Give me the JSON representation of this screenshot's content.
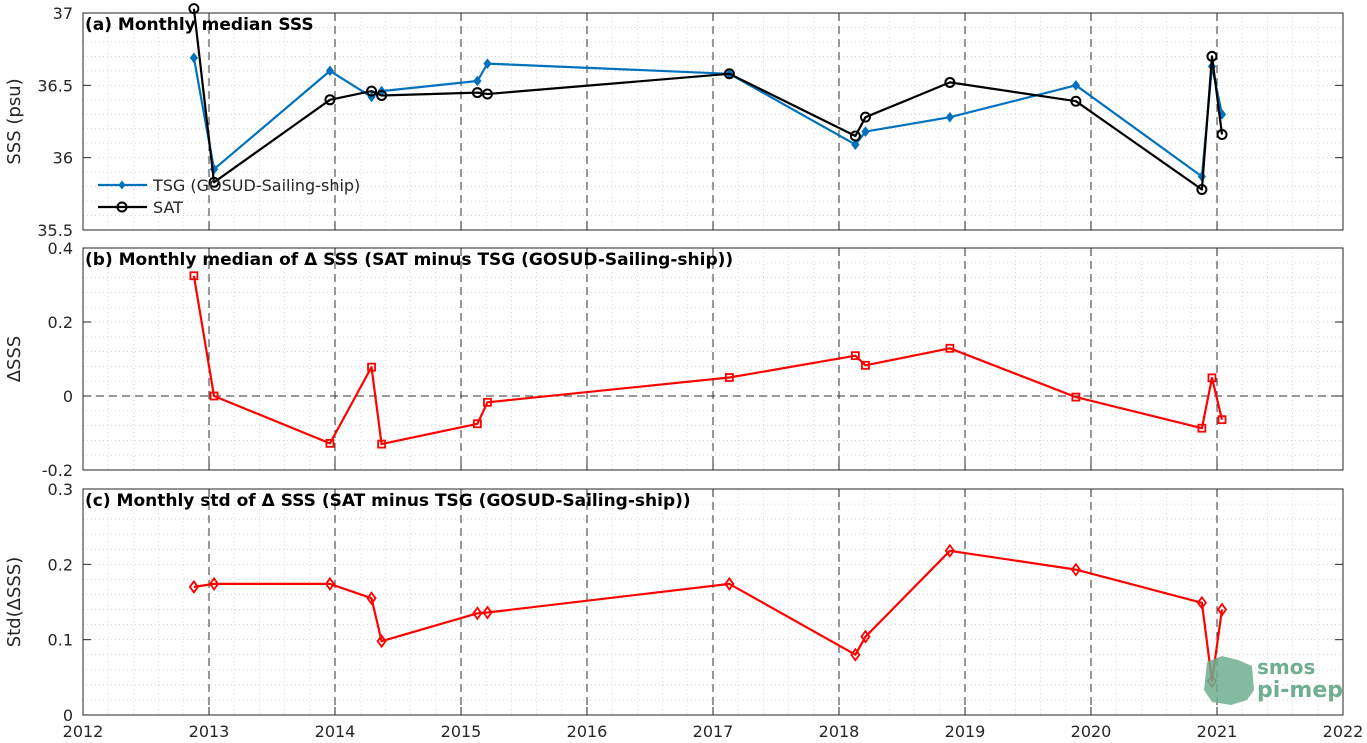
{
  "chart_data": [
    {
      "type": "line",
      "title": "(a) Monthly median SSS",
      "ylabel": "SSS (psu)",
      "xlim": [
        2012,
        2022
      ],
      "ylim": [
        35.5,
        37
      ],
      "yticks": [
        "35.5",
        "36",
        "36.5",
        "37"
      ],
      "xticks": [
        "2012",
        "2013",
        "2014",
        "2015",
        "2016",
        "2017",
        "2018",
        "2019",
        "2020",
        "2021",
        "2022"
      ],
      "grid": true,
      "legend_position": "lower-left",
      "series": [
        {
          "name": "TSG (GOSUD-Sailing-ship)",
          "color": "#0072bd",
          "marker": "filled-diamond",
          "x": [
            2012.88,
            2013.04,
            2013.96,
            2014.29,
            2014.37,
            2015.13,
            2015.21,
            2017.13,
            2018.13,
            2018.21,
            2018.88,
            2019.88,
            2020.88,
            2020.96,
            2021.04
          ],
          "values": [
            36.69,
            35.92,
            36.6,
            36.42,
            36.46,
            36.53,
            36.65,
            36.58,
            36.09,
            36.18,
            36.28,
            36.5,
            35.87,
            36.63,
            36.3
          ]
        },
        {
          "name": "SAT",
          "color": "#000000",
          "marker": "open-circle",
          "x": [
            2012.88,
            2013.04,
            2013.96,
            2014.29,
            2014.37,
            2015.13,
            2015.21,
            2017.13,
            2018.13,
            2018.21,
            2018.88,
            2019.88,
            2020.88,
            2020.96,
            2021.04
          ],
          "values": [
            37.03,
            35.83,
            36.4,
            36.46,
            36.43,
            36.45,
            36.44,
            36.58,
            36.15,
            36.28,
            36.52,
            36.39,
            35.78,
            36.7,
            36.16
          ]
        }
      ]
    },
    {
      "type": "line",
      "title": "(b) Monthly median of Δ SSS (SAT minus TSG (GOSUD-Sailing-ship))",
      "ylabel": "ΔSSS",
      "xlim": [
        2012,
        2022
      ],
      "ylim": [
        -0.2,
        0.4
      ],
      "yticks": [
        "-0.2",
        "0",
        "0.2",
        "0.4"
      ],
      "xticks": [
        "2012",
        "2013",
        "2014",
        "2015",
        "2016",
        "2017",
        "2018",
        "2019",
        "2020",
        "2021",
        "2022"
      ],
      "grid": true,
      "zero_line": true,
      "series": [
        {
          "color": "#ff0000",
          "marker": "open-square",
          "x": [
            2012.88,
            2013.04,
            2013.96,
            2014.29,
            2014.37,
            2015.13,
            2015.21,
            2017.13,
            2018.13,
            2018.21,
            2018.88,
            2019.88,
            2020.88,
            2020.96,
            2021.04
          ],
          "values": [
            0.325,
            0.0,
            -0.128,
            0.078,
            -0.13,
            -0.075,
            -0.017,
            0.05,
            0.109,
            0.083,
            0.129,
            -0.003,
            -0.087,
            0.049,
            -0.064
          ]
        }
      ]
    },
    {
      "type": "line",
      "title": "(c) Monthly std of Δ SSS (SAT minus TSG (GOSUD-Sailing-ship))",
      "ylabel": "Std(ΔSSS)",
      "xlim": [
        2012,
        2022
      ],
      "ylim": [
        0,
        0.3
      ],
      "yticks": [
        "0",
        "0.1",
        "0.2",
        "0.3"
      ],
      "xticks": [
        "2012",
        "2013",
        "2014",
        "2015",
        "2016",
        "2017",
        "2018",
        "2019",
        "2020",
        "2021",
        "2022"
      ],
      "grid": true,
      "series": [
        {
          "color": "#ff0000",
          "marker": "open-diamond",
          "x": [
            2012.88,
            2013.04,
            2013.96,
            2014.29,
            2014.37,
            2015.13,
            2015.21,
            2017.13,
            2018.13,
            2018.21,
            2018.88,
            2019.88,
            2020.88,
            2020.96,
            2021.04
          ],
          "values": [
            0.17,
            0.174,
            0.174,
            0.155,
            0.098,
            0.135,
            0.136,
            0.174,
            0.08,
            0.104,
            0.218,
            0.193,
            0.149,
            0.045,
            0.14
          ]
        }
      ]
    }
  ],
  "logo": {
    "line1": "smos",
    "line2": "pi-mep"
  }
}
